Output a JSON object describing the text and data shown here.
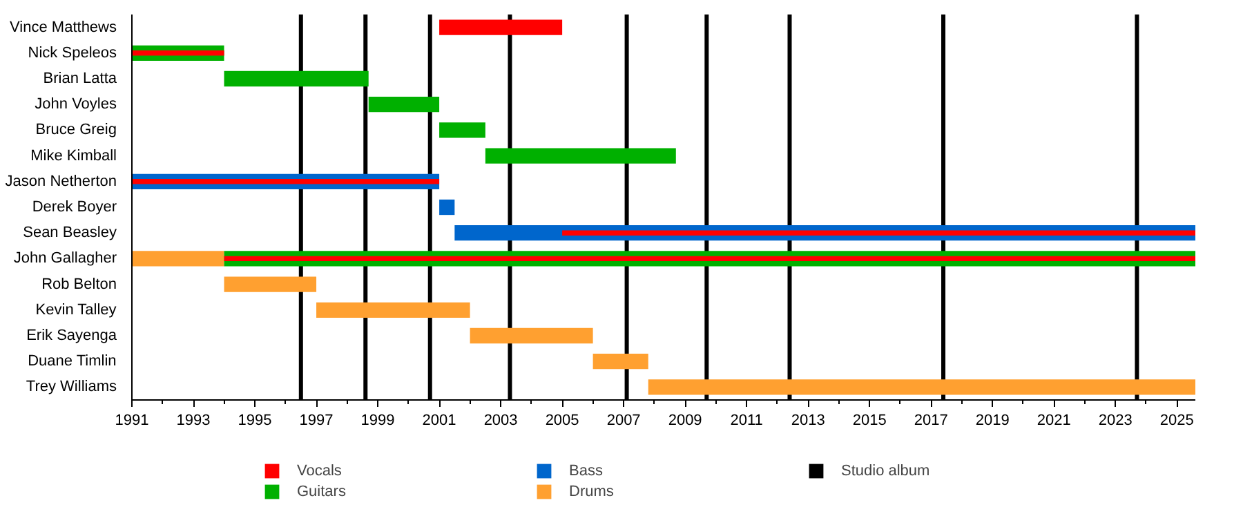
{
  "chart_data": {
    "type": "bar",
    "orientation": "horizontal",
    "categories": [
      "Vince Matthews",
      "Nick Speleos",
      "Brian Latta",
      "John Voyles",
      "Bruce Greig",
      "Mike Kimball",
      "Jason Netherton",
      "Derek Boyer",
      "Sean Beasley",
      "John Gallagher",
      "Rob Belton",
      "Kevin Talley",
      "Erik Sayenga",
      "Duane Timlin",
      "Trey Williams"
    ],
    "series": [
      {
        "name": "Vocals",
        "color": "#ff0000",
        "base": [
          2001,
          1991,
          null,
          null,
          null,
          null,
          1991,
          null,
          2005,
          1994,
          null,
          null,
          null,
          null,
          null
        ],
        "values": [
          4,
          3,
          null,
          null,
          null,
          null,
          10,
          null,
          20.6,
          31.6,
          null,
          null,
          null,
          null,
          null
        ]
      },
      {
        "name": "Guitars",
        "color": "#00b000",
        "base": [
          null,
          1991,
          1994,
          1998.7,
          2001,
          2002.5,
          null,
          null,
          null,
          1994,
          null,
          null,
          null,
          null,
          null
        ],
        "values": [
          null,
          3,
          4.7,
          2.3,
          1.5,
          6.2,
          null,
          null,
          null,
          31.6,
          null,
          null,
          null,
          null,
          null
        ]
      },
      {
        "name": "Bass",
        "color": "#0066cc",
        "base": [
          null,
          null,
          null,
          null,
          null,
          null,
          1991,
          2001,
          2001.5,
          null,
          null,
          null,
          null,
          null,
          null
        ],
        "values": [
          null,
          null,
          null,
          null,
          null,
          null,
          10,
          0.5,
          24.1,
          null,
          null,
          null,
          null,
          null,
          null
        ]
      },
      {
        "name": "Drums",
        "color": "#ffa030",
        "base": [
          null,
          null,
          null,
          null,
          null,
          null,
          null,
          null,
          null,
          1991,
          1994,
          1997,
          2002,
          2006,
          2007.8
        ],
        "values": [
          null,
          null,
          null,
          null,
          null,
          null,
          null,
          null,
          null,
          3,
          3,
          5,
          4,
          1.8,
          17.8
        ]
      }
    ],
    "xlim": [
      1991,
      2025.6
    ],
    "xticks": [
      1991,
      {
        "value": 1992,
        "label": null
      },
      1993,
      {
        "value": 1994,
        "label": null
      },
      1995,
      {
        "value": 1996,
        "label": null
      },
      1997,
      {
        "value": 1998,
        "label": null
      },
      1999,
      {
        "value": 2000,
        "label": null
      },
      2001,
      {
        "value": 2002,
        "label": null
      },
      2003,
      {
        "value": 2004,
        "label": null
      },
      2005,
      {
        "value": 2006,
        "label": null
      },
      2007,
      {
        "value": 2008,
        "label": null
      },
      2009,
      {
        "value": 2010,
        "label": null
      },
      2011,
      {
        "value": 2012,
        "label": null
      },
      2013,
      {
        "value": 2014,
        "label": null
      },
      2015,
      {
        "value": 2016,
        "label": null
      },
      2017,
      {
        "value": 2018,
        "label": null
      },
      2019,
      {
        "value": 2020,
        "label": null
      },
      2021,
      {
        "value": 2022,
        "label": null
      },
      2023,
      {
        "value": 2024,
        "label": null
      },
      2025
    ],
    "ref_lines": [
      {
        "axis": "x",
        "value": 1996.5,
        "label": "Studio album",
        "color": "#000000"
      },
      {
        "axis": "x",
        "value": 1998.6,
        "color": "#000000"
      },
      {
        "axis": "x",
        "value": 2000.7,
        "color": "#000000"
      },
      {
        "axis": "x",
        "value": 2003.3,
        "color": "#000000"
      },
      {
        "axis": "x",
        "value": 2007.1,
        "color": "#000000"
      },
      {
        "axis": "x",
        "value": 2009.7,
        "color": "#000000"
      },
      {
        "axis": "x",
        "value": 2012.4,
        "color": "#000000"
      },
      {
        "axis": "x",
        "value": 2017.4,
        "color": "#000000"
      },
      {
        "axis": "x",
        "value": 2023.7,
        "color": "#000000"
      }
    ],
    "grid": false,
    "legend": "bottom"
  }
}
